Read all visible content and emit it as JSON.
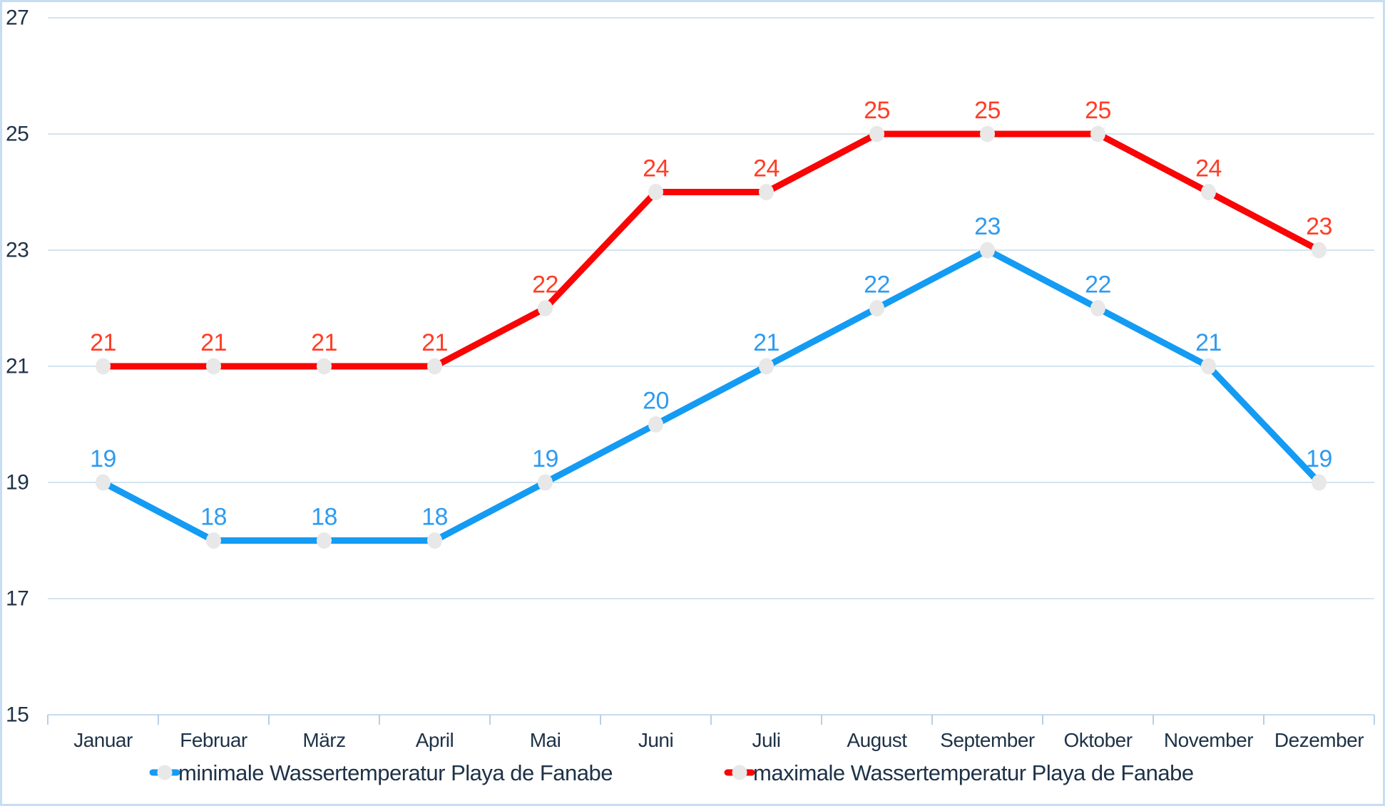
{
  "chart_data": {
    "type": "line",
    "title": "",
    "categories": [
      "Januar",
      "Februar",
      "März",
      "April",
      "Mai",
      "Juni",
      "Juli",
      "August",
      "September",
      "Oktober",
      "November",
      "Dezember"
    ],
    "series": [
      {
        "name": "minimale Wassertemperatur Playa de Fanabe",
        "values": [
          19,
          18,
          18,
          18,
          19,
          20,
          21,
          22,
          23,
          22,
          21,
          19
        ],
        "line_color": "#149BF3",
        "label_color": "#2E9BF0"
      },
      {
        "name": "maximale Wassertemperatur Playa de Fanabe",
        "values": [
          21,
          21,
          21,
          21,
          22,
          24,
          24,
          25,
          25,
          25,
          24,
          23
        ],
        "line_color": "#F90505",
        "label_color": "#FF3D26"
      }
    ],
    "y_ticks": [
      15,
      17,
      19,
      21,
      23,
      25,
      27
    ],
    "ylim": [
      15,
      27
    ],
    "grid": true,
    "show_data_labels": true,
    "legend_position": "bottom",
    "marker_color": "#E8E8E8",
    "colors": {
      "axis_text": "#1E3247",
      "gridline": "#D5E4F0",
      "axis_line": "#C8DCEE",
      "tick": "#B9D0E5",
      "border": "#C7DDF4",
      "background": "#FFFFFF"
    }
  }
}
